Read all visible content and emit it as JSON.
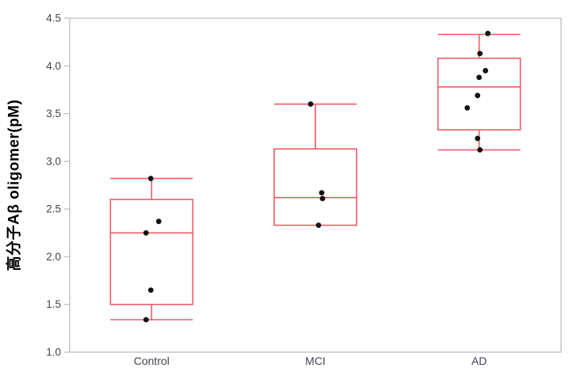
{
  "chart_data": {
    "type": "box",
    "title": "",
    "xlabel": "",
    "ylabel": "高分子Aβ oligomer(pM)",
    "ylim": [
      1.0,
      4.5
    ],
    "ytick_step": 0.5,
    "yticks": [
      "1.0",
      "1.5",
      "2.0",
      "2.5",
      "3.0",
      "3.5",
      "4.0",
      "4.5"
    ],
    "categories": [
      "Control",
      "MCI",
      "AD"
    ],
    "legend": null,
    "grid": false,
    "colors": {
      "box_stroke": "#ed5a68",
      "point_fill": "#121212",
      "frame": "#c9c9c9",
      "tick_label": "#3f4450",
      "background": "#ffffff"
    },
    "groups": [
      {
        "label": "Control",
        "whisker_low": 1.34,
        "q1": 1.5,
        "median": 2.25,
        "q3": 2.6,
        "whisker_high": 2.82,
        "points": [
          [
            2.82,
            -1
          ],
          [
            2.37,
            9
          ],
          [
            2.25,
            -7
          ],
          [
            1.65,
            -1
          ],
          [
            1.34,
            -7
          ]
        ]
      },
      {
        "label": "MCI",
        "whisker_low": null,
        "q1": 2.33,
        "median": 2.62,
        "q3": 3.13,
        "whisker_high": 3.6,
        "points": [
          [
            3.6,
            -6
          ],
          [
            2.67,
            8
          ],
          [
            2.61,
            9
          ],
          [
            2.33,
            4
          ]
        ]
      },
      {
        "label": "AD",
        "whisker_low": 3.12,
        "q1": 3.33,
        "median": 3.78,
        "q3": 4.08,
        "whisker_high": 4.33,
        "points": [
          [
            4.34,
            11
          ],
          [
            4.13,
            1
          ],
          [
            3.95,
            8
          ],
          [
            3.88,
            0
          ],
          [
            3.69,
            -2
          ],
          [
            3.56,
            -15
          ],
          [
            3.24,
            -2
          ],
          [
            3.12,
            1
          ]
        ]
      }
    ]
  }
}
